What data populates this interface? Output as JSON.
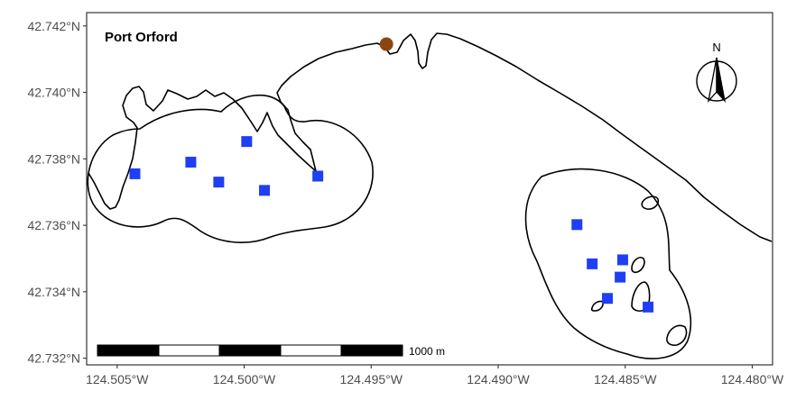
{
  "map": {
    "title": "Port Orford",
    "y_ticks": [
      "42.742°N",
      "42.740°N",
      "42.738°N",
      "42.736°N",
      "42.734°N",
      "42.732°N"
    ],
    "x_ticks": [
      "124.505°W",
      "124.500°W",
      "124.495°W",
      "124.490°W",
      "124.485°W",
      "124.480°W"
    ],
    "scale_bar_label": "1000 m",
    "north_arrow_label": "N",
    "colors": {
      "station_marker": "#1f3ff5",
      "port_marker": "#8b4513",
      "coastline": "#000000",
      "background": "#ffffff"
    },
    "icons": {
      "north_arrow": "north-arrow-icon",
      "scale_bar": "scale-bar-icon"
    }
  },
  "chart_data": {
    "type": "scatter",
    "title": "Port Orford",
    "xlabel": "",
    "ylabel": "",
    "xlim": [
      -124.5062,
      -124.4792
    ],
    "ylim": [
      42.7318,
      42.7424
    ],
    "series": [
      {
        "marker": "square",
        "points": [
          {
            "x": -124.5043,
            "y": 42.73755
          },
          {
            "x": -124.5021,
            "y": 42.7379
          },
          {
            "x": -124.501,
            "y": 42.7373
          },
          {
            "x": -124.4999,
            "y": 42.73852
          },
          {
            "x": -124.4992,
            "y": 42.73705
          },
          {
            "x": -124.4971,
            "y": 42.73748
          },
          {
            "x": -124.4869,
            "y": 42.73602
          },
          {
            "x": -124.4863,
            "y": 42.73484
          },
          {
            "x": -124.4851,
            "y": 42.73496
          },
          {
            "x": -124.4852,
            "y": 42.73444
          },
          {
            "x": -124.4857,
            "y": 42.7338
          },
          {
            "x": -124.4841,
            "y": 42.73354
          }
        ]
      },
      {
        "marker": "circle",
        "points": [
          {
            "x": -124.4944,
            "y": 42.74145
          }
        ]
      }
    ]
  }
}
